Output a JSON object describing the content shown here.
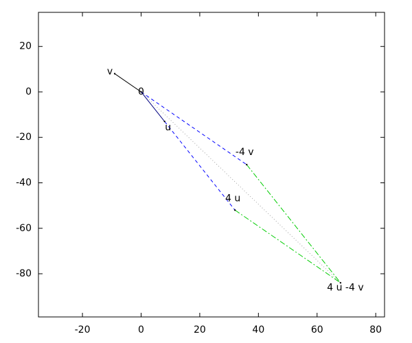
{
  "chart_data": {
    "type": "vector",
    "xlim": [
      -35,
      83
    ],
    "ylim": [
      -99,
      35
    ],
    "xticks": [
      -20,
      0,
      20,
      40,
      60,
      80
    ],
    "yticks": [
      -80,
      -60,
      -40,
      -20,
      0,
      20
    ],
    "series": [
      {
        "x": [
          0,
          -9
        ],
        "y": [
          0,
          8
        ],
        "color": "#000000",
        "dash": "solid"
      },
      {
        "x": [
          0,
          8
        ],
        "y": [
          0,
          -13
        ],
        "color": "#000080",
        "dash": "solid"
      },
      {
        "x": [
          0,
          36
        ],
        "y": [
          0,
          -32
        ],
        "color": "#0000ff",
        "dash": "dashed"
      },
      {
        "x": [
          8,
          32
        ],
        "y": [
          -13,
          -52
        ],
        "color": "#0000ff",
        "dash": "dashed"
      },
      {
        "x": [
          36,
          68
        ],
        "y": [
          -32,
          -84
        ],
        "color": "#00cc00",
        "dash": "dashdot"
      },
      {
        "x": [
          32,
          68
        ],
        "y": [
          -52,
          -84
        ],
        "color": "#00cc00",
        "dash": "dashdot"
      },
      {
        "x": [
          0,
          68
        ],
        "y": [
          0,
          -84
        ],
        "color": "#a0a0a0",
        "dash": "dotted"
      }
    ],
    "points": [
      {
        "label": "v",
        "x": -9,
        "y": 8
      },
      {
        "label": "0",
        "x": 0,
        "y": 0
      },
      {
        "label": "u",
        "x": 8,
        "y": -13
      },
      {
        "label": "-4 v",
        "x": 36,
        "y": -32
      },
      {
        "label": "4 u",
        "x": 32,
        "y": -52
      },
      {
        "label": "4 u -4 v",
        "x": 68,
        "y": -84
      }
    ]
  }
}
